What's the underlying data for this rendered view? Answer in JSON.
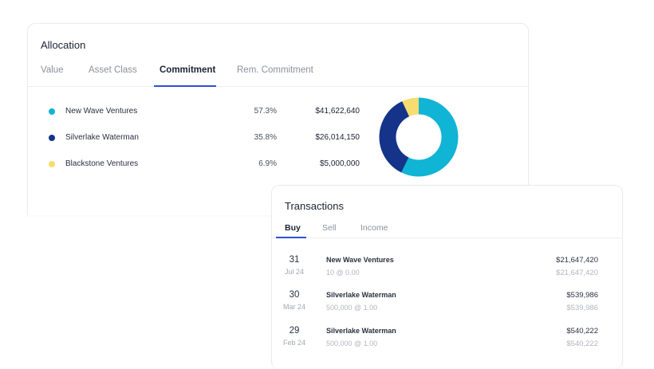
{
  "allocation": {
    "title": "Allocation",
    "tabs": [
      {
        "label": "Value"
      },
      {
        "label": "Asset Class"
      },
      {
        "label": "Commitment"
      },
      {
        "label": "Rem. Commitment"
      }
    ],
    "active_tab": "Commitment",
    "items": [
      {
        "name": "New Wave Ventures",
        "pct": "57.3%",
        "amount": "$41,622,640",
        "color": "#10b4d4",
        "share": 57.3
      },
      {
        "name": "Silverlake Waterman",
        "pct": "35.8%",
        "amount": "$26,014,150",
        "color": "#143389",
        "share": 35.8
      },
      {
        "name": "Blackstone Ventures",
        "pct": "6.9%",
        "amount": "$5,000,000",
        "color": "#f7dc6f",
        "share": 6.9
      }
    ]
  },
  "transactions": {
    "title": "Transactions",
    "tabs": [
      {
        "label": "Buy"
      },
      {
        "label": "Sell"
      },
      {
        "label": "Income"
      }
    ],
    "active_tab": "Buy",
    "rows": [
      {
        "day": "31",
        "month": "Jul 24",
        "name": "New Wave Ventures",
        "detail": "10 @ 0.00",
        "amount": "$21,647,420",
        "amount2": "$21,647,420"
      },
      {
        "day": "30",
        "month": "Mar 24",
        "name": "Silverlake Waterman",
        "detail": "500,000 @ 1.00",
        "amount": "$539,986",
        "amount2": "$539,986"
      },
      {
        "day": "29",
        "month": "Feb 24",
        "name": "Silverlake Waterman",
        "detail": "500,000 @ 1.00",
        "amount": "$540,222",
        "amount2": "$540,222"
      }
    ]
  },
  "colors": {
    "accent": "#2f4fd8"
  }
}
